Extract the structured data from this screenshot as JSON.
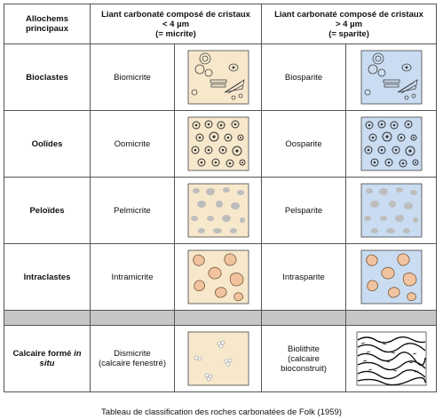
{
  "header": {
    "col1": [
      "Allochems",
      "principaux"
    ],
    "col2": [
      "Liant carbonaté composé de cristaux",
      "< 4 µm",
      "(= micrite)"
    ],
    "col3": [
      "Liant carbonaté composé de cristaux",
      "> 4 µm",
      "(= sparite)"
    ]
  },
  "rows": [
    {
      "allochem": "Bioclastes",
      "micrite": "Biomicrite",
      "sparite": "Biosparite"
    },
    {
      "allochem": "Oolïdes",
      "micrite": "Oomicrite",
      "sparite": "Oosparite"
    },
    {
      "allochem": "Peloïdes",
      "micrite": "Pelmicrite",
      "sparite": "Pelsparite"
    },
    {
      "allochem": "Intraclastes",
      "micrite": "Intramicrite",
      "sparite": "Intrasparite"
    }
  ],
  "last_row": {
    "allochem_a": "Calcaire formé ",
    "allochem_b": "in",
    "allochem_c": "situ",
    "micrite_line1": "Dismicrite",
    "micrite_line2": "(calcaire fenestré)",
    "sparite_line1": "Biolithite",
    "sparite_line2": "(calcaire",
    "sparite_line3": "bioconstruit)"
  },
  "caption": "Tableau de classification des roches carbonatées de Folk (1959)",
  "colors": {
    "micrite_fill": "#f7e8cc",
    "sparite_fill": "#c9dcf1",
    "grain": "#bdbdbd",
    "intraclast": "#f1c39f"
  }
}
